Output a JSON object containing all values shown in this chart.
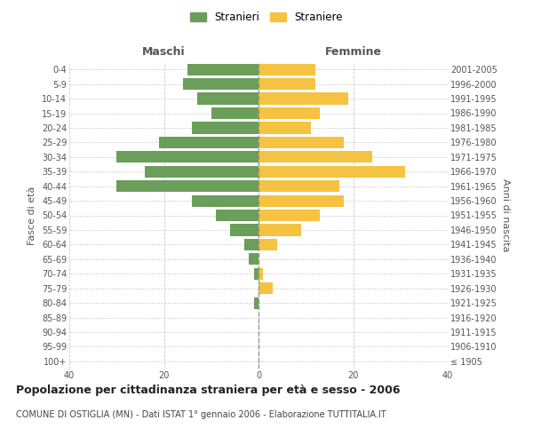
{
  "age_groups": [
    "100+",
    "95-99",
    "90-94",
    "85-89",
    "80-84",
    "75-79",
    "70-74",
    "65-69",
    "60-64",
    "55-59",
    "50-54",
    "45-49",
    "40-44",
    "35-39",
    "30-34",
    "25-29",
    "20-24",
    "15-19",
    "10-14",
    "5-9",
    "0-4"
  ],
  "birth_years": [
    "≤ 1905",
    "1906-1910",
    "1911-1915",
    "1916-1920",
    "1921-1925",
    "1926-1930",
    "1931-1935",
    "1936-1940",
    "1941-1945",
    "1946-1950",
    "1951-1955",
    "1956-1960",
    "1961-1965",
    "1966-1970",
    "1971-1975",
    "1976-1980",
    "1981-1985",
    "1986-1990",
    "1991-1995",
    "1996-2000",
    "2001-2005"
  ],
  "males": [
    0,
    0,
    0,
    0,
    1,
    0,
    1,
    2,
    3,
    6,
    9,
    14,
    30,
    24,
    30,
    21,
    14,
    10,
    13,
    16,
    15
  ],
  "females": [
    0,
    0,
    0,
    0,
    0,
    3,
    1,
    0,
    4,
    9,
    13,
    18,
    17,
    31,
    24,
    18,
    11,
    13,
    19,
    12,
    12
  ],
  "male_color": "#6a9e5a",
  "female_color": "#f5c242",
  "male_label": "Stranieri",
  "female_label": "Straniere",
  "xlim": [
    -40,
    40
  ],
  "maschi_label": "Maschi",
  "femmine_label": "Femmine",
  "ylabel_left": "Fasce di età",
  "ylabel_right": "Anni di nascita",
  "title": "Popolazione per cittadinanza straniera per età e sesso - 2006",
  "subtitle": "COMUNE DI OSTIGLIA (MN) - Dati ISTAT 1° gennaio 2006 - Elaborazione TUTTITALIA.IT",
  "bg_color": "#ffffff",
  "grid_color": "#cccccc",
  "bar_height": 0.8,
  "xticks": [
    -40,
    -20,
    0,
    20,
    40
  ],
  "xtick_labels": [
    "40",
    "20",
    "0",
    "20",
    "40"
  ],
  "center_line_color": "#999977",
  "legend_marker_size": 10,
  "title_fontsize": 9,
  "subtitle_fontsize": 7,
  "tick_fontsize": 7,
  "label_fontsize": 8,
  "header_fontsize": 9
}
